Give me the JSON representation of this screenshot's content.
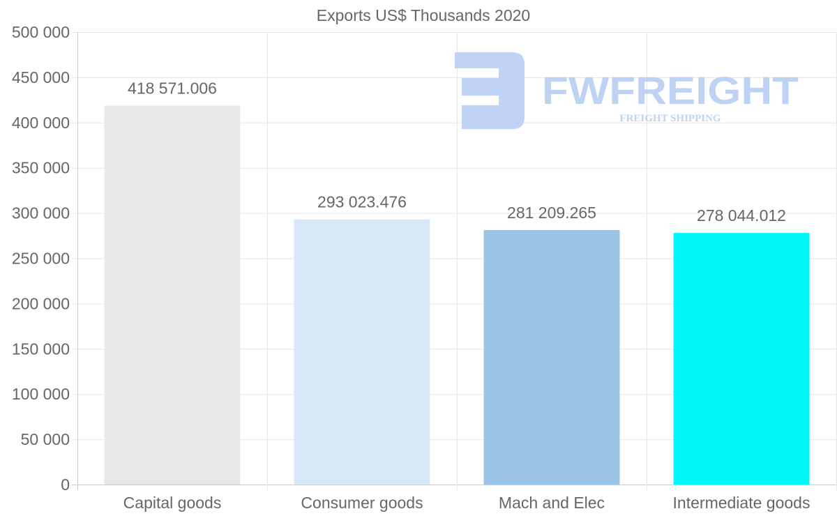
{
  "chart_data": {
    "type": "bar",
    "title": "Exports US$ Thousands 2020",
    "xlabel": "",
    "ylabel": "",
    "ylim": [
      0,
      500000
    ],
    "yticks": [
      0,
      50000,
      100000,
      150000,
      200000,
      250000,
      300000,
      350000,
      400000,
      450000,
      500000
    ],
    "ytick_labels": [
      "0",
      "50 000",
      "100 000",
      "150 000",
      "200 000",
      "250 000",
      "300 000",
      "350 000",
      "400 000",
      "450 000",
      "500 000"
    ],
    "categories": [
      "Capital goods",
      "Consumer goods",
      "Mach and Elec",
      "Intermediate goods"
    ],
    "values": [
      418571.006,
      293023.476,
      281209.265,
      278044.012
    ],
    "data_labels": [
      "418 571.006",
      "293 023.476",
      "281 209.265",
      "278 044.012"
    ],
    "colors": [
      "#e8e8e8",
      "#d9e8f9",
      "#9bc4e6",
      "#00f8f8"
    ],
    "grid": true,
    "legend": "none"
  },
  "watermark": {
    "brand": "FWFREIGHT",
    "tagline": "FREIGHT SHIPPING",
    "color": "#b3cbf3"
  }
}
